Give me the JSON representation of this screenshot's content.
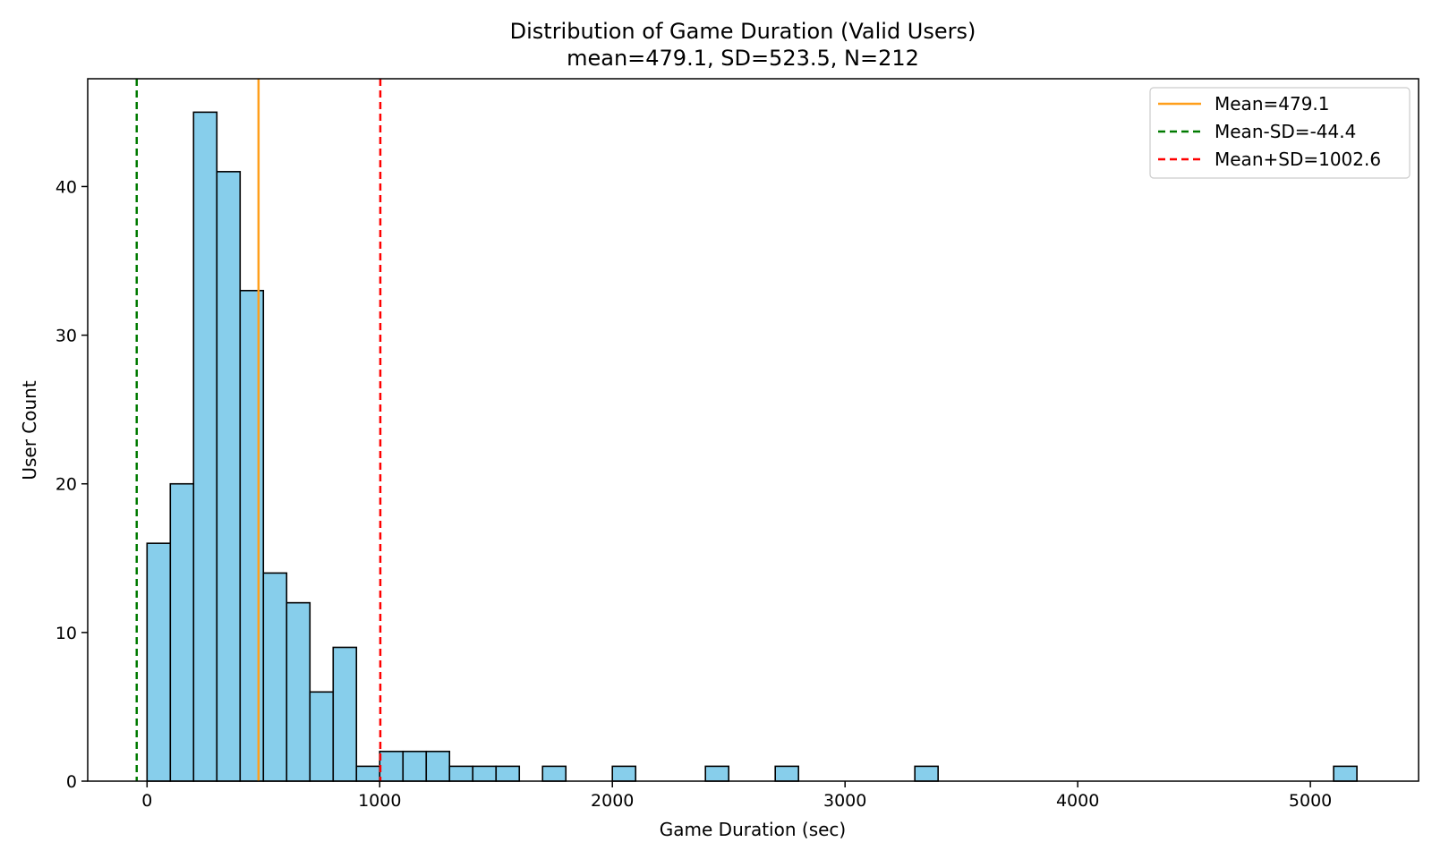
{
  "chart_data": {
    "type": "bar",
    "title": "Distribution of Game Duration (Valid Users)",
    "subtitle": "mean=479.1, SD=523.5, N=212",
    "xlabel": "Game Duration (sec)",
    "ylabel": "User Count",
    "xlim": [
      -255,
      5465
    ],
    "ylim": [
      0,
      47.25
    ],
    "bin_width": 100,
    "xticks": [
      0,
      1000,
      2000,
      3000,
      4000,
      5000
    ],
    "yticks": [
      0,
      10,
      20,
      30,
      40
    ],
    "bins": [
      {
        "x0": 0,
        "x1": 100,
        "count": 16
      },
      {
        "x0": 100,
        "x1": 200,
        "count": 20
      },
      {
        "x0": 200,
        "x1": 300,
        "count": 45
      },
      {
        "x0": 300,
        "x1": 400,
        "count": 41
      },
      {
        "x0": 400,
        "x1": 500,
        "count": 33
      },
      {
        "x0": 500,
        "x1": 600,
        "count": 14
      },
      {
        "x0": 600,
        "x1": 700,
        "count": 12
      },
      {
        "x0": 700,
        "x1": 800,
        "count": 6
      },
      {
        "x0": 800,
        "x1": 900,
        "count": 9
      },
      {
        "x0": 900,
        "x1": 1000,
        "count": 1
      },
      {
        "x0": 1000,
        "x1": 1100,
        "count": 2
      },
      {
        "x0": 1100,
        "x1": 1200,
        "count": 2
      },
      {
        "x0": 1200,
        "x1": 1300,
        "count": 2
      },
      {
        "x0": 1300,
        "x1": 1400,
        "count": 1
      },
      {
        "x0": 1400,
        "x1": 1500,
        "count": 1
      },
      {
        "x0": 1500,
        "x1": 1600,
        "count": 1
      },
      {
        "x0": 1700,
        "x1": 1800,
        "count": 1
      },
      {
        "x0": 2000,
        "x1": 2100,
        "count": 1
      },
      {
        "x0": 2400,
        "x1": 2500,
        "count": 1
      },
      {
        "x0": 2700,
        "x1": 2800,
        "count": 1
      },
      {
        "x0": 3300,
        "x1": 3400,
        "count": 1
      },
      {
        "x0": 5100,
        "x1": 5200,
        "count": 1
      }
    ],
    "reference_lines": [
      {
        "name": "Mean=479.1",
        "x": 479.1,
        "color": "#ff9f1c",
        "style": "solid"
      },
      {
        "name": "Mean-SD=-44.4",
        "x": -44.4,
        "color": "#007a00",
        "style": "dashed"
      },
      {
        "name": "Mean+SD=1002.6",
        "x": 1002.6,
        "color": "#ff0000",
        "style": "dashed"
      }
    ],
    "bar_color": "#87ceeb",
    "bar_edge_color": "#000000",
    "grid": false,
    "legend_position": "top-right"
  }
}
